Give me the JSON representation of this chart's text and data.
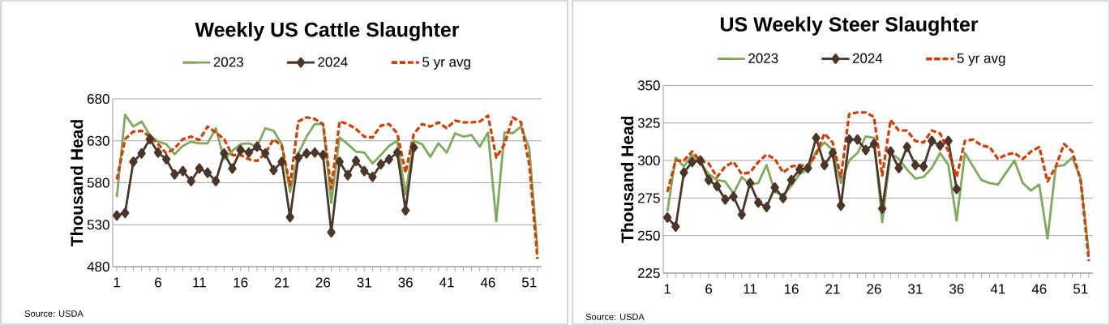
{
  "chart_data": [
    {
      "type": "line",
      "title": "Weekly US Cattle Slaughter",
      "ylabel": "Thousand Head",
      "annotations": [
        "Source: USDA"
      ],
      "categories": [
        "1",
        null,
        null,
        null,
        null,
        "6",
        null,
        null,
        null,
        null,
        "11",
        null,
        null,
        null,
        null,
        "16",
        null,
        null,
        null,
        null,
        "21",
        null,
        null,
        null,
        null,
        "26",
        null,
        null,
        null,
        null,
        "31",
        null,
        null,
        null,
        null,
        "36",
        null,
        null,
        null,
        null,
        "41",
        null,
        null,
        null,
        null,
        "46",
        null,
        null,
        null,
        null,
        "51",
        null
      ],
      "series": [
        {
          "name": "2023",
          "color": "#7dab5c",
          "marker": "none",
          "line_style": "solid",
          "values": [
            563,
            661,
            647,
            653,
            637,
            629,
            626,
            614,
            624,
            629,
            627,
            627,
            645,
            608,
            618,
            626,
            627,
            623,
            645,
            642,
            626,
            569,
            615,
            635,
            650,
            650,
            556,
            634,
            626,
            617,
            616,
            603,
            613,
            624,
            630,
            566,
            630,
            626,
            611,
            627,
            616,
            639,
            635,
            637,
            623,
            640,
            534,
            640,
            639,
            647,
            621,
            500
          ]
        },
        {
          "name": "2024",
          "color": "#4b3629",
          "marker": "diamond",
          "line_style": "solid",
          "values": [
            541,
            544,
            605,
            615,
            632,
            616,
            608,
            590,
            594,
            582,
            597,
            592,
            582,
            615,
            597,
            619,
            616,
            623,
            615,
            595,
            605,
            539,
            610,
            615,
            616,
            613,
            521,
            605,
            589,
            606,
            594,
            587,
            602,
            608,
            616,
            547,
            622,
            null,
            null,
            null,
            null,
            null,
            null,
            null,
            null,
            null,
            null,
            null,
            null,
            null,
            null,
            null
          ]
        },
        {
          "name": "5 yr avg",
          "color": "#d83b01",
          "marker": "none",
          "line_style": "dashed",
          "values": [
            584,
            632,
            641,
            642,
            635,
            626,
            615,
            621,
            632,
            635,
            631,
            647,
            640,
            632,
            613,
            613,
            608,
            606,
            615,
            632,
            624,
            577,
            653,
            658,
            656,
            650,
            573,
            653,
            650,
            644,
            635,
            634,
            648,
            650,
            639,
            592,
            638,
            650,
            647,
            652,
            645,
            654,
            652,
            652,
            653,
            660,
            610,
            626,
            658,
            652,
            602,
            489
          ]
        }
      ],
      "ylim": [
        480,
        680
      ],
      "yticks": [
        480,
        530,
        580,
        630,
        680
      ],
      "grid": "y",
      "legend": "top"
    },
    {
      "type": "line",
      "title": "US Weekly Steer Slaughter",
      "ylabel": "Thousand Head",
      "annotations": [
        "Source: USDA"
      ],
      "categories": [
        "1",
        null,
        null,
        null,
        null,
        "6",
        null,
        null,
        null,
        null,
        "11",
        null,
        null,
        null,
        null,
        "16",
        null,
        null,
        null,
        null,
        "21",
        null,
        null,
        null,
        null,
        "26",
        null,
        null,
        null,
        null,
        "31",
        null,
        null,
        null,
        null,
        "36",
        null,
        null,
        null,
        null,
        "41",
        null,
        null,
        null,
        null,
        "46",
        null,
        null,
        null,
        null,
        "51",
        null
      ],
      "series": [
        {
          "name": "2023",
          "color": "#7dab5c",
          "marker": "none",
          "line_style": "solid",
          "values": [
            266,
            302,
            296,
            304,
            298,
            291,
            287,
            286,
            278,
            289,
            284,
            285,
            297,
            279,
            277,
            283,
            291,
            294,
            306,
            312,
            307,
            285,
            300,
            305,
            316,
            315,
            259,
            305,
            301,
            294,
            288,
            289,
            295,
            305,
            297,
            260,
            305,
            296,
            287,
            285,
            284,
            292,
            300,
            285,
            280,
            284,
            248,
            296,
            297,
            302,
            288,
            238
          ]
        },
        {
          "name": "2024",
          "color": "#4b3629",
          "marker": "diamond",
          "line_style": "solid",
          "values": [
            262,
            256,
            292,
            299,
            300,
            287,
            283,
            274,
            276,
            264,
            285,
            272,
            269,
            282,
            275,
            287,
            294,
            295,
            315,
            297,
            305,
            270,
            314,
            314,
            307,
            311,
            268,
            306,
            295,
            309,
            297,
            296,
            313,
            310,
            313,
            281,
            null,
            null,
            null,
            null,
            null,
            null,
            null,
            null,
            null,
            null,
            null,
            null,
            null,
            null,
            null,
            null
          ]
        },
        {
          "name": "5 yr avg",
          "color": "#d83b01",
          "marker": "none",
          "line_style": "dashed",
          "values": [
            279,
            300,
            300,
            306,
            300,
            298,
            289,
            296,
            299,
            291,
            292,
            299,
            304,
            301,
            292,
            296,
            297,
            296,
            304,
            318,
            312,
            289,
            331,
            332,
            332,
            329,
            290,
            327,
            320,
            320,
            313,
            312,
            320,
            318,
            306,
            289,
            313,
            314,
            310,
            309,
            301,
            304,
            305,
            301,
            306,
            309,
            286,
            296,
            311,
            306,
            287,
            233
          ]
        }
      ],
      "ylim": [
        225,
        350
      ],
      "yticks": [
        225,
        250,
        275,
        300,
        325,
        350
      ],
      "grid": "y",
      "legend": "top"
    }
  ]
}
